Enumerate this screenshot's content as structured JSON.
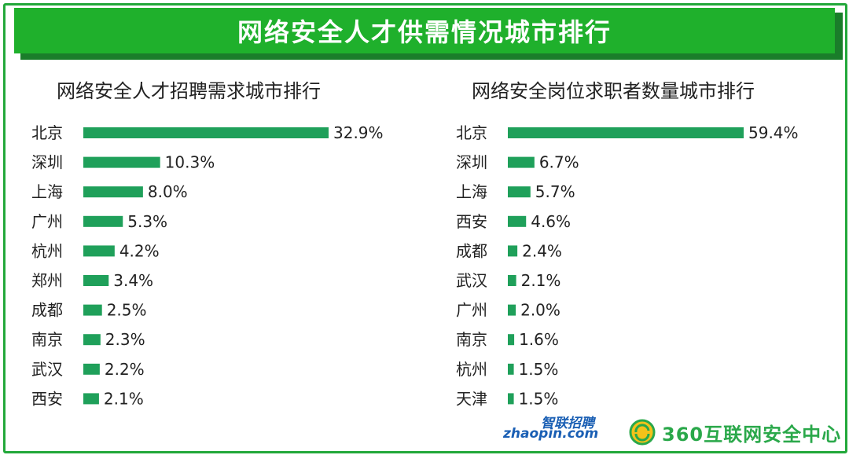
{
  "banner": {
    "title": "网络安全人才供需情况城市排行"
  },
  "colors": {
    "banner": "#1fb02c",
    "bar": "#1fa05a",
    "frame": "#22a83a"
  },
  "chart_data": [
    {
      "type": "bar",
      "orientation": "horizontal",
      "title": "网络安全人才招聘需求城市排行",
      "categories": [
        "北京",
        "深圳",
        "上海",
        "广州",
        "杭州",
        "郑州",
        "成都",
        "南京",
        "武汉",
        "西安"
      ],
      "values": [
        32.9,
        10.3,
        8.0,
        5.3,
        4.2,
        3.4,
        2.5,
        2.3,
        2.2,
        2.1
      ],
      "labels": [
        "32.9%",
        "10.3%",
        "8.0%",
        "5.3%",
        "4.2%",
        "3.4%",
        "2.5%",
        "2.3%",
        "2.2%",
        "2.1%"
      ],
      "unit": "%",
      "grid": false
    },
    {
      "type": "bar",
      "orientation": "horizontal",
      "title": "网络安全岗位求职者数量城市排行",
      "categories": [
        "北京",
        "深圳",
        "上海",
        "西安",
        "成都",
        "武汉",
        "广州",
        "南京",
        "杭州",
        "天津"
      ],
      "values": [
        59.4,
        6.7,
        5.7,
        4.6,
        2.4,
        2.1,
        2.0,
        1.6,
        1.5,
        1.5
      ],
      "labels": [
        "59.4%",
        "6.7%",
        "5.7%",
        "4.6%",
        "2.4%",
        "2.1%",
        "2.0%",
        "1.6%",
        "1.5%",
        "1.5%"
      ],
      "unit": "%",
      "grid": false
    }
  ],
  "logos": {
    "zhaopin_cn": "智联招聘",
    "zhaopin_url": "zhaopin.com",
    "qihoo": "360互联网安全中心"
  }
}
